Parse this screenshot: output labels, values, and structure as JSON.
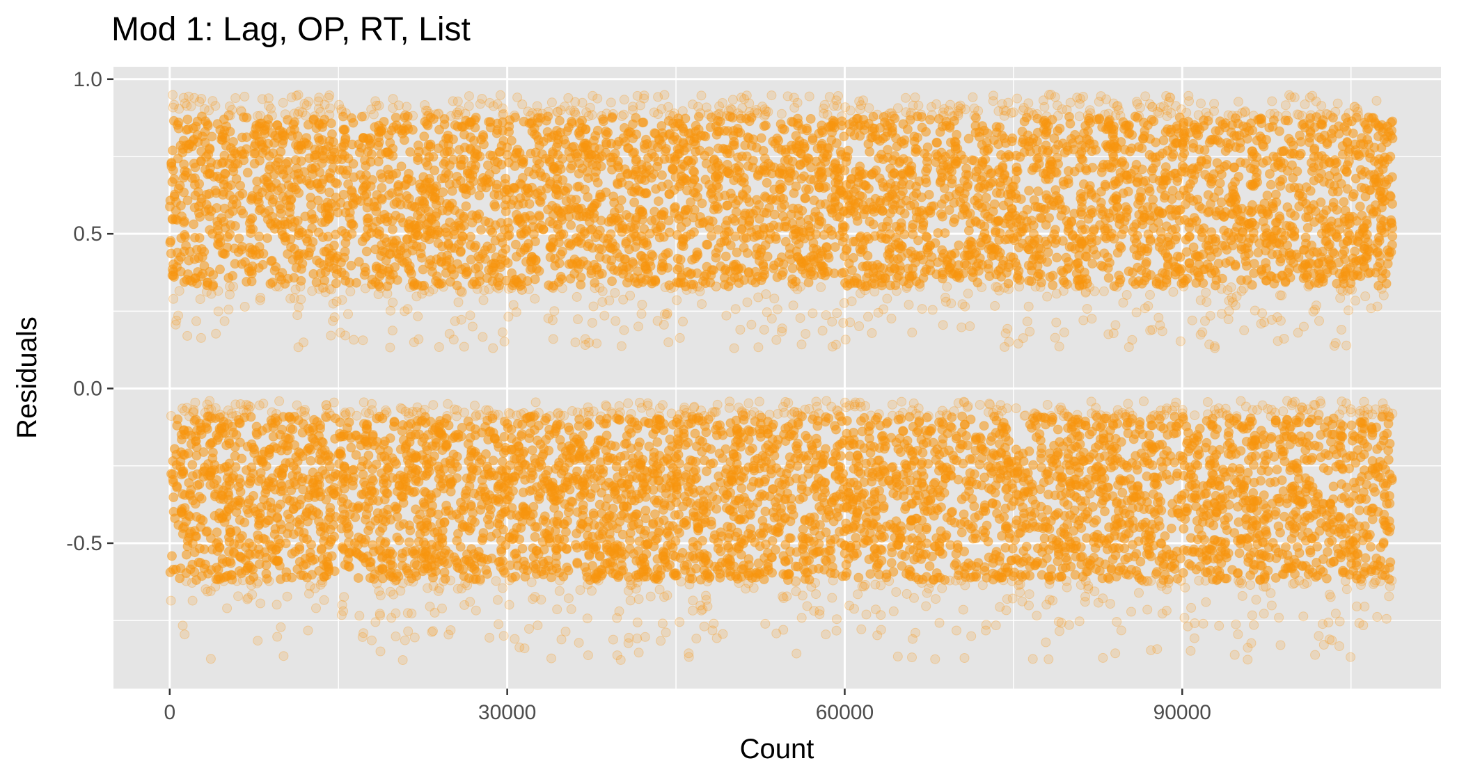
{
  "chart_data": {
    "type": "scatter",
    "title": "Mod 1: Lag, OP, RT, List",
    "xlabel": "Count",
    "ylabel": "Residuals",
    "xlim": [
      -5000,
      113000
    ],
    "ylim": [
      -0.97,
      1.04
    ],
    "x_ticks": [
      0,
      30000,
      60000,
      90000
    ],
    "x_tick_labels": [
      "0",
      "30000",
      "60000",
      "90000"
    ],
    "y_ticks": [
      -0.5,
      0.0,
      0.5,
      1.0
    ],
    "y_tick_labels": [
      "-0.5",
      "0.0",
      "0.5",
      "1.0"
    ],
    "grid": true,
    "legend": "none",
    "point_color": "#F8960F",
    "panel_background": "#E5E5E5",
    "series": [
      {
        "x_range": [
          0,
          108700
        ],
        "clusters": [
          {
            "center": 0.62,
            "core_range": [
              0.33,
              0.88
            ],
            "extent": [
              0.13,
              0.95
            ]
          },
          {
            "center": -0.33,
            "core_range": [
              -0.62,
              -0.09
            ],
            "extent": [
              -0.88,
              -0.04
            ]
          }
        ]
      }
    ]
  }
}
